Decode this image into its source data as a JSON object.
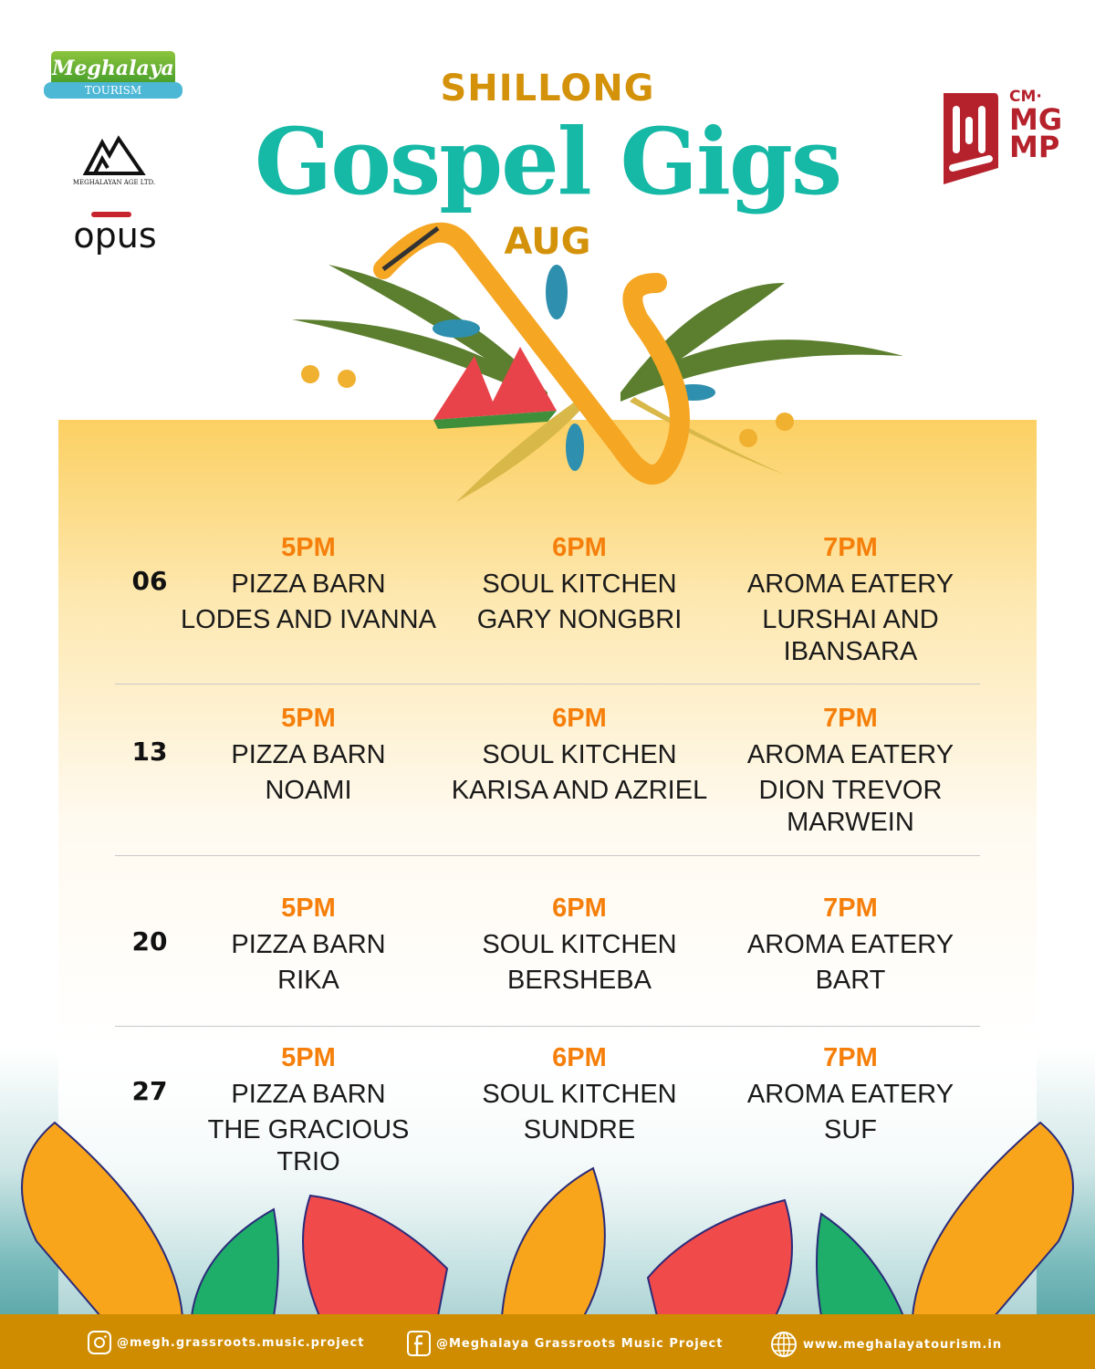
{
  "header": {
    "city": "SHILLONG",
    "title": "Gospel Gigs",
    "month": "AUG"
  },
  "logos": {
    "tourism_top": "Meghalaya",
    "tourism_bottom": "TOURISM",
    "age": "MEGHALAYAN AGE LTD.",
    "opus": "opus",
    "cm_line1": "CM·",
    "cm_line2": "MG",
    "cm_line3": "MP"
  },
  "schedule": [
    {
      "date": "06",
      "slots": [
        {
          "time": "5PM",
          "venue": "PIZZA BARN",
          "artist": "LODES AND IVANNA"
        },
        {
          "time": "6PM",
          "venue": "SOUL KITCHEN",
          "artist": "GARY NONGBRI"
        },
        {
          "time": "7PM",
          "venue": "AROMA EATERY",
          "artist": "LURSHAI AND IBANSARA"
        }
      ]
    },
    {
      "date": "13",
      "slots": [
        {
          "time": "5PM",
          "venue": "PIZZA BARN",
          "artist": "NOAMI"
        },
        {
          "time": "6PM",
          "venue": "SOUL KITCHEN",
          "artist": "KARISA AND AZRIEL"
        },
        {
          "time": "7PM",
          "venue": "AROMA EATERY",
          "artist": "DION TREVOR MARWEIN"
        }
      ]
    },
    {
      "date": "20",
      "slots": [
        {
          "time": "5PM",
          "venue": "PIZZA BARN",
          "artist": "RIKA"
        },
        {
          "time": "6PM",
          "venue": "SOUL KITCHEN",
          "artist": "BERSHEBA"
        },
        {
          "time": "7PM",
          "venue": "AROMA EATERY",
          "artist": "BART"
        }
      ]
    },
    {
      "date": "27",
      "slots": [
        {
          "time": "5PM",
          "venue": "PIZZA BARN",
          "artist": "THE GRACIOUS TRIO"
        },
        {
          "time": "6PM",
          "venue": "SOUL KITCHEN",
          "artist": "SUNDRE"
        },
        {
          "time": "7PM",
          "venue": "AROMA EATERY",
          "artist": "SUF"
        }
      ]
    }
  ],
  "footer": {
    "instagram": "@megh.grassroots.music.project",
    "facebook": "@Meghalaya Grassroots Music Project",
    "website": "www.meghalayatourism.in"
  },
  "colors": {
    "title": "#16b8a6",
    "accent": "#d4920a",
    "time": "#f57f0a",
    "footer": "#cf8c00",
    "cm_red": "#b5222c"
  }
}
